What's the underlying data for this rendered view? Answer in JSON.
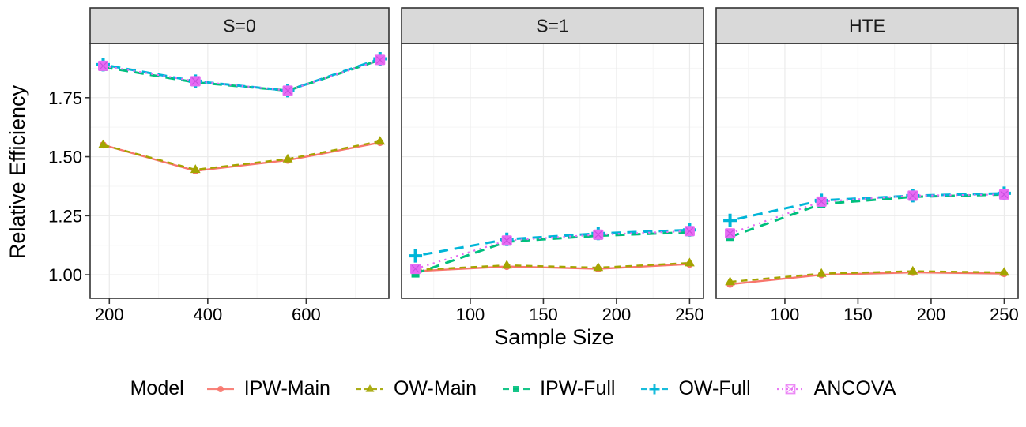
{
  "chart_data": {
    "type": "line",
    "xlabel": "Sample Size",
    "ylabel": "Relative Efficiency",
    "legend_title": "Model",
    "legend_position": "bottom",
    "grid": true,
    "ylim": [
      0.9,
      1.98
    ],
    "y_ticks": [
      1.0,
      1.25,
      1.5,
      1.75
    ],
    "y_tick_labels": [
      "1.00",
      "1.25",
      "1.50",
      "1.75"
    ],
    "y_minor_ticks": [
      1.125,
      1.375,
      1.625,
      1.875
    ],
    "series_meta": [
      {
        "name": "IPW-Main",
        "color": "#F8766D",
        "linetype": "solid",
        "marker": "circle"
      },
      {
        "name": "OW-Main",
        "color": "#A3A500",
        "linetype": "dashed",
        "marker": "triangle"
      },
      {
        "name": "IPW-Full",
        "color": "#00BF7D",
        "linetype": "longdash",
        "marker": "square"
      },
      {
        "name": "OW-Full",
        "color": "#00B5D8",
        "linetype": "longdash2",
        "marker": "plus"
      },
      {
        "name": "ANCOVA",
        "color": "#E76BF3",
        "linetype": "dotted",
        "marker": "square-cross"
      }
    ],
    "facets": [
      {
        "label": "S=0",
        "x": [
          187.5,
          375,
          562.5,
          750
        ],
        "xlim": [
          161,
          768
        ],
        "x_ticks": [
          200,
          400,
          600
        ],
        "x_minor_ticks": [
          300,
          500,
          700
        ],
        "series": [
          {
            "name": "IPW-Main",
            "values": [
              1.55,
              1.44,
              1.485,
              1.56
            ]
          },
          {
            "name": "OW-Main",
            "values": [
              1.55,
              1.445,
              1.49,
              1.565
            ]
          },
          {
            "name": "IPW-Full",
            "values": [
              1.88,
              1.815,
              1.78,
              1.91
            ]
          },
          {
            "name": "OW-Full",
            "values": [
              1.89,
              1.82,
              1.78,
              1.915
            ]
          },
          {
            "name": "ANCOVA",
            "values": [
              1.885,
              1.82,
              1.78,
              1.91
            ]
          }
        ]
      },
      {
        "label": "S=1",
        "x": [
          62.5,
          125,
          187.5,
          250
        ],
        "xlim": [
          53,
          259.5
        ],
        "x_ticks": [
          100,
          150,
          200,
          250
        ],
        "x_minor_ticks": [
          75,
          125,
          175,
          225
        ],
        "series": [
          {
            "name": "IPW-Main",
            "values": [
              1.015,
              1.035,
              1.025,
              1.045
            ]
          },
          {
            "name": "OW-Main",
            "values": [
              1.02,
              1.04,
              1.03,
              1.05
            ]
          },
          {
            "name": "IPW-Full",
            "values": [
              1.005,
              1.14,
              1.165,
              1.18
            ]
          },
          {
            "name": "OW-Full",
            "values": [
              1.08,
              1.15,
              1.175,
              1.19
            ]
          },
          {
            "name": "ANCOVA",
            "values": [
              1.025,
              1.145,
              1.17,
              1.185
            ]
          }
        ]
      },
      {
        "label": "HTE",
        "x": [
          62.5,
          125,
          187.5,
          250
        ],
        "xlim": [
          53,
          259.5
        ],
        "x_ticks": [
          100,
          150,
          200,
          250
        ],
        "x_minor_ticks": [
          75,
          125,
          175,
          225
        ],
        "series": [
          {
            "name": "IPW-Main",
            "values": [
              0.96,
              1.0,
              1.01,
              1.005
            ]
          },
          {
            "name": "OW-Main",
            "values": [
              0.97,
              1.005,
              1.015,
              1.01
            ]
          },
          {
            "name": "IPW-Full",
            "values": [
              1.16,
              1.3,
              1.33,
              1.34
            ]
          },
          {
            "name": "OW-Full",
            "values": [
              1.23,
              1.315,
              1.335,
              1.345
            ]
          },
          {
            "name": "ANCOVA",
            "values": [
              1.175,
              1.31,
              1.335,
              1.34
            ]
          }
        ]
      }
    ],
    "style": {
      "strip_fill": "#D9D9D9",
      "strip_border": "#333333",
      "panel_border": "#333333",
      "grid_major": "#ebebeb",
      "grid_minor": "#f5f5f5",
      "tick_color": "#333333",
      "text_color": "#000000"
    }
  }
}
